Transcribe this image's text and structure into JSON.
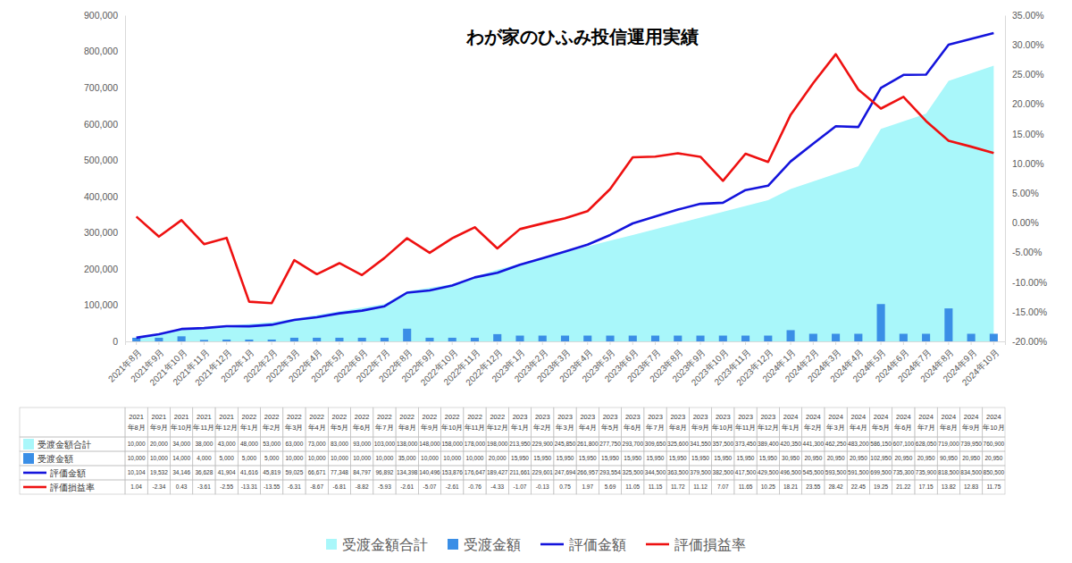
{
  "chart_data": {
    "type": "line",
    "title": "わが家のひふみ投信運用実績",
    "categories": [
      "2021年8月",
      "2021年9月",
      "2021年10月",
      "2021年11月",
      "2021年12月",
      "2022年1月",
      "2022年2月",
      "2022年3月",
      "2022年4月",
      "2022年5月",
      "2022年6月",
      "2022年7月",
      "2022年8月",
      "2022年9月",
      "2022年10月",
      "2022年11月",
      "2022年12月",
      "2023年1月",
      "2023年2月",
      "2023年3月",
      "2023年4月",
      "2023年5月",
      "2023年6月",
      "2023年7月",
      "2023年8月",
      "2023年9月",
      "2023年10月",
      "2023年11月",
      "2023年12月",
      "2024年1月",
      "2024年2月",
      "2024年3月",
      "2024年4月",
      "2024年5月",
      "2024年6月",
      "2024年7月",
      "2024年8月",
      "2024年9月",
      "2024年10月"
    ],
    "series": [
      {
        "name": "受渡金額合計",
        "type": "area",
        "color": "#a9f7fa",
        "values": [
          10000,
          20000,
          34000,
          38000,
          43000,
          48000,
          53000,
          63000,
          73000,
          83000,
          93000,
          103000,
          138000,
          148000,
          158000,
          178000,
          198000,
          213950,
          229900,
          245850,
          261800,
          277750,
          293700,
          309650,
          325600,
          341550,
          357500,
          373450,
          389400,
          420350,
          441300,
          462250,
          483200,
          586150,
          607100,
          628050,
          719000,
          739950,
          760900
        ],
        "value_labels": [
          "10,000",
          "20,000",
          "34,000",
          "38,000",
          "43,000",
          "48,000",
          "53,000",
          "63,000",
          "73,000",
          "83,000",
          "93,000",
          "103,000",
          "138,000",
          "148,000",
          "158,000",
          "178,000",
          "198,000",
          "213,950",
          "229,900",
          "245,850",
          "261,800",
          "277,750",
          "293,700",
          "309,650",
          "325,600",
          "341,550",
          "357,500",
          "373,450",
          "389,400",
          "420,350",
          "441,300",
          "462,250",
          "483,200",
          "586,150",
          "607,100",
          "628,050",
          "719,000",
          "739,950",
          "760,900"
        ]
      },
      {
        "name": "受渡金額",
        "type": "bar",
        "color": "#3a8ee6",
        "values": [
          10000,
          10000,
          14000,
          4000,
          5000,
          5000,
          5000,
          10000,
          10000,
          10000,
          10000,
          10000,
          35000,
          10000,
          10000,
          10000,
          20000,
          15950,
          15950,
          15950,
          15950,
          15950,
          15950,
          15950,
          15950,
          15950,
          15950,
          15950,
          15950,
          30950,
          20950,
          20950,
          20950,
          102950,
          20950,
          20950,
          90950,
          20950,
          20950
        ],
        "value_labels": [
          "10,000",
          "10,000",
          "14,000",
          "4,000",
          "5,000",
          "5,000",
          "5,000",
          "10,000",
          "10,000",
          "10,000",
          "10,000",
          "10,000",
          "35,000",
          "10,000",
          "10,000",
          "10,000",
          "20,000",
          "15,950",
          "15,950",
          "15,950",
          "15,950",
          "15,950",
          "15,950",
          "15,950",
          "15,950",
          "15,950",
          "15,950",
          "15,950",
          "15,950",
          "30,950",
          "20,950",
          "20,950",
          "20,950",
          "102,950",
          "20,950",
          "20,950",
          "90,950",
          "20,950",
          "20,950"
        ]
      },
      {
        "name": "評価金額",
        "type": "line",
        "color": "#1414dc",
        "values": [
          10104,
          19532,
          34146,
          36628,
          41904,
          41616,
          45819,
          59025,
          66671,
          77348,
          84797,
          96892,
          134398,
          140496,
          153876,
          176647,
          189427,
          211661,
          229601,
          247694,
          266957,
          293554,
          325500,
          344500,
          363500,
          379500,
          382500,
          417500,
          429500,
          496500,
          545500,
          593500,
          591500,
          699500,
          735300,
          735900,
          818500,
          834500,
          850500
        ],
        "value_labels": [
          "10,104",
          "19,532",
          "34,146",
          "36,628",
          "41,904",
          "41,616",
          "45,819",
          "59,025",
          "66,671",
          "77,348",
          "84,797",
          "96,892",
          "134,398",
          "140,496",
          "153,876",
          "176,647",
          "189,427",
          "211,661",
          "229,601",
          "247,694",
          "266,957",
          "293,554",
          "325,500",
          "344,500",
          "363,500",
          "379,500",
          "382,500",
          "417,500",
          "429,500",
          "496,500",
          "545,500",
          "593,500",
          "591,500",
          "699,500",
          "735,300",
          "735,900",
          "818,500",
          "834,500",
          "850,500"
        ]
      },
      {
        "name": "評価損益率",
        "type": "line",
        "axis": "y2",
        "color": "#ee1111",
        "values": [
          1.04,
          -2.34,
          0.43,
          -3.61,
          -2.55,
          -13.31,
          -13.55,
          -6.31,
          -8.67,
          -6.81,
          -8.82,
          -5.93,
          -2.61,
          -5.07,
          -2.61,
          -0.76,
          -4.33,
          -1.07,
          -0.13,
          0.75,
          1.97,
          5.69,
          11.05,
          11.15,
          11.72,
          11.12,
          7.07,
          11.65,
          10.25,
          18.21,
          23.55,
          28.42,
          22.45,
          19.25,
          21.22,
          17.15,
          13.82,
          12.83,
          11.75
        ]
      }
    ],
    "ylim": [
      0,
      900000
    ],
    "yticks": [
      0,
      {
        "value": 100000,
        "label": "100,000"
      },
      {
        "value": 200000,
        "label": "200,000"
      },
      {
        "value": 300000,
        "label": "300,000"
      },
      {
        "value": 400000,
        "label": "400,000"
      },
      {
        "value": 500000,
        "label": "500,000"
      },
      {
        "value": 600000,
        "label": "600,000"
      },
      {
        "value": 700000,
        "label": "700,000"
      },
      {
        "value": 800000,
        "label": "800,000"
      },
      {
        "value": 900000,
        "label": "900,000"
      }
    ],
    "y2lim": [
      -20,
      35
    ],
    "y2ticks": [
      {
        "value": -20,
        "label": "-20.00%"
      },
      {
        "value": -15,
        "label": "-15.00%"
      },
      {
        "value": -10,
        "label": "-10.00%"
      },
      {
        "value": -5,
        "label": "-5.00%"
      },
      {
        "value": 0,
        "label": "0.00%"
      },
      {
        "value": 5,
        "label": "5.00%"
      },
      {
        "value": 10,
        "label": "10.00%"
      },
      {
        "value": 15,
        "label": "15.00%"
      },
      {
        "value": 20,
        "label": "20.00%"
      },
      {
        "value": 25,
        "label": "25.00%"
      },
      {
        "value": 30,
        "label": "30.00%"
      },
      {
        "value": 35,
        "label": "35.00%"
      }
    ],
    "grid": false,
    "legend": "bottom",
    "data_labels": true
  }
}
